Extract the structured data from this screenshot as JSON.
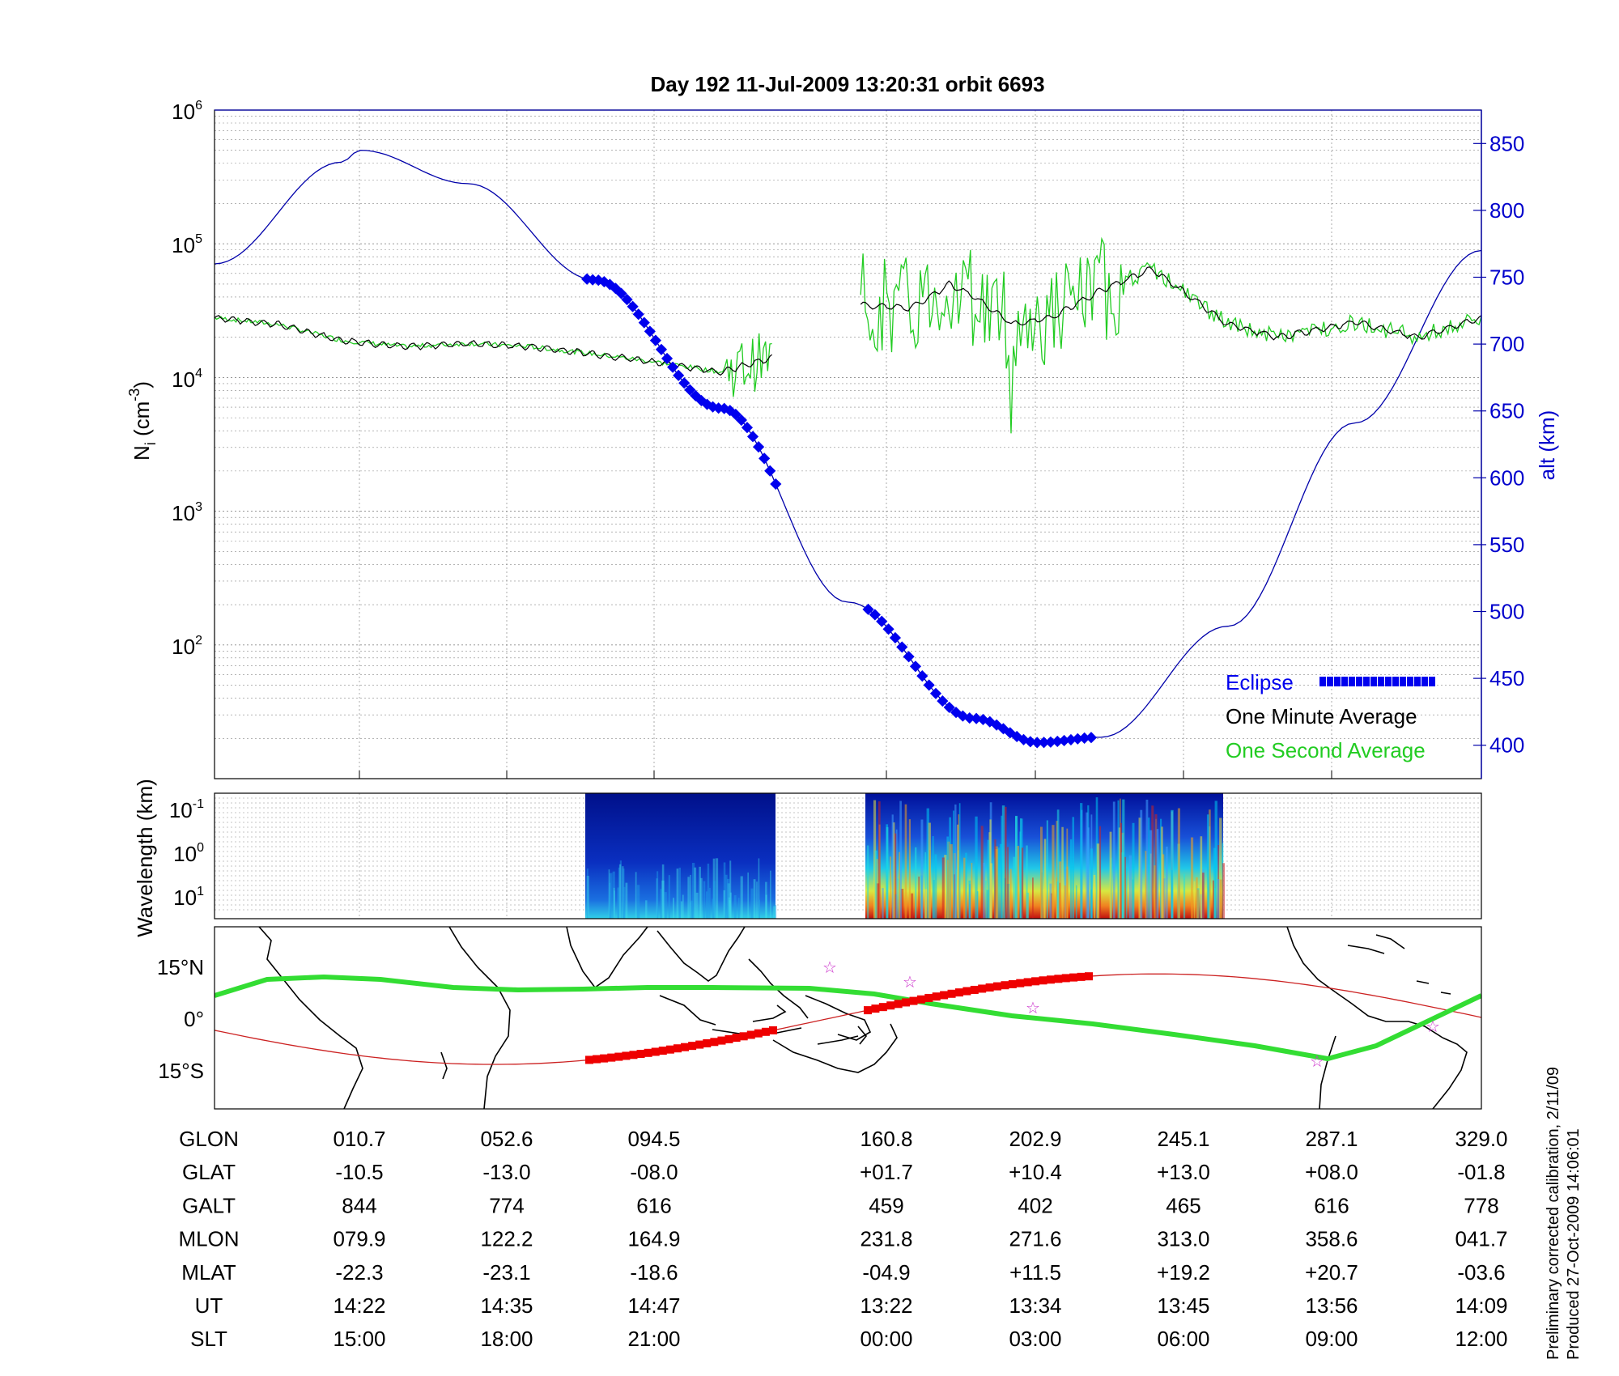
{
  "title": "Day 192  11-Jul-2009 13:20:31   orbit 6693",
  "footnote_1": "Preliminary corrected calibration, 2/11/09",
  "footnote_2": "Produced 27-Oct-2009 14:06:01",
  "colors": {
    "eclipse": "#0000ee",
    "one_minute": "#000000",
    "one_second": "#22cc22",
    "altitude": "#0000aa",
    "footprint": "#ee0000",
    "track": "#33dd33",
    "stars": "#cc33cc"
  },
  "chart_data": [
    {
      "type": "line",
      "ylabel": "Ni (cm-3)",
      "ylabel_right": "alt (km)",
      "y_scale": "log",
      "ylim": [
        10,
        1000000
      ],
      "y_ticks": [
        "10^2",
        "10^3",
        "10^4",
        "10^5",
        "10^6"
      ],
      "y2lim": [
        375,
        875
      ],
      "y2_ticks": [
        "400",
        "450",
        "500",
        "550",
        "600",
        "650",
        "700",
        "750",
        "800",
        "850"
      ],
      "grid": true,
      "legend": [
        "Eclipse",
        "One Minute Average",
        "One Second Average"
      ],
      "legend_position": "bottom-right",
      "series": [
        {
          "name": "One Minute Average",
          "x": [
            0,
            0.05,
            0.1,
            0.15,
            0.2,
            0.25,
            0.3,
            0.35,
            0.4,
            0.44
          ],
          "y": [
            28000,
            25000,
            19000,
            17000,
            18000,
            17000,
            15000,
            13000,
            11000,
            14000
          ]
        },
        {
          "name": "One Minute Average",
          "x": [
            0.51,
            0.55,
            0.58,
            0.6,
            0.63,
            0.66,
            0.7,
            0.74,
            0.8,
            0.84,
            0.9,
            0.95,
            1.0
          ],
          "y": [
            35000,
            33000,
            50000,
            40000,
            25000,
            28000,
            45000,
            65000,
            25000,
            20000,
            26000,
            20000,
            28000
          ]
        },
        {
          "name": "alt (km)",
          "x": [
            0,
            0.1,
            0.115,
            0.2,
            0.3,
            0.4,
            0.5,
            0.6,
            0.65,
            0.7,
            0.8,
            0.9,
            1.0
          ],
          "y2": [
            760,
            836,
            845,
            820,
            748,
            652,
            507,
            420,
            402,
            406,
            489,
            641,
            770
          ]
        }
      ]
    },
    {
      "type": "heatmap",
      "ylabel": "Wavelength (km)",
      "y_ticks": [
        "10^-1",
        "10^0",
        "10^1"
      ]
    },
    {
      "type": "map",
      "y_ticks": [
        "15°N",
        "0°",
        "15°S"
      ]
    },
    {
      "type": "table",
      "rows": [
        {
          "label": "GLON",
          "values": [
            "010.7",
            "052.6",
            "094.5",
            "160.8",
            "202.9",
            "245.1",
            "287.1",
            "329.0"
          ]
        },
        {
          "label": "GLAT",
          "values": [
            "-10.5",
            "-13.0",
            "-08.0",
            "+01.7",
            "+10.4",
            "+13.0",
            "+08.0",
            "-01.8"
          ]
        },
        {
          "label": "GALT",
          "values": [
            "844",
            "774",
            "616",
            "459",
            "402",
            "465",
            "616",
            "778"
          ]
        },
        {
          "label": "MLON",
          "values": [
            "079.9",
            "122.2",
            "164.9",
            "231.8",
            "271.6",
            "313.0",
            "358.6",
            "041.7"
          ]
        },
        {
          "label": "MLAT",
          "values": [
            "-22.3",
            "-23.1",
            "-18.6",
            "-04.9",
            "+11.5",
            "+19.2",
            "+20.7",
            "-03.6"
          ]
        },
        {
          "label": "UT",
          "values": [
            "14:22",
            "14:35",
            "14:47",
            "13:22",
            "13:34",
            "13:45",
            "13:56",
            "14:09"
          ]
        },
        {
          "label": "SLT",
          "values": [
            "15:00",
            "18:00",
            "21:00",
            "00:00",
            "03:00",
            "06:00",
            "09:00",
            "12:00"
          ]
        }
      ]
    }
  ]
}
